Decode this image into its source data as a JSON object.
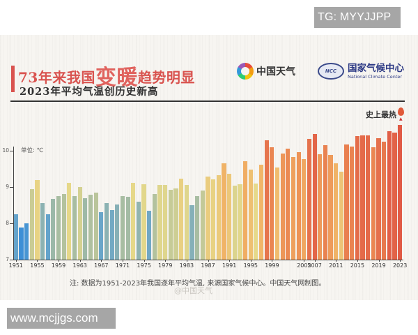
{
  "watermarks": {
    "top": "TG: MYYJJPP",
    "bottom": "www.mcjjgs.com"
  },
  "header": {
    "title_prefix": "73年来我国",
    "title_emph1": "变",
    "title_emph2": "暖",
    "title_suffix": "趋势明显",
    "subtitle": "2023年平均气温创历史新高",
    "logo1_text": "中国天气",
    "logo2_emblem": "NCC",
    "logo2_cn": "国家气候中心",
    "logo2_en": "National Climate Center"
  },
  "annotations": {
    "unit": "单位: ℃",
    "record": "史上最热",
    "note": "注: 数据为1951-2023年我国逐年平均气温, 来源国家气候中心。中国天气网制图。",
    "weibo": "@中国天气"
  },
  "chart_data": {
    "type": "bar",
    "title": "73年来我国变暖趋势明显 — 2023年平均气温创历史新高",
    "xlabel": "",
    "ylabel": "单位: ℃",
    "ylim": [
      7,
      10.9
    ],
    "yticks": [
      7,
      8,
      9,
      10
    ],
    "xtick_labels": [
      "1951",
      "1955",
      "1959",
      "1963",
      "1967",
      "1971",
      "1975",
      "1979",
      "1983",
      "1987",
      "1991",
      "1995",
      "1999",
      "2005",
      "2007",
      "2011",
      "2015",
      "2019",
      "2023"
    ],
    "grid": false,
    "legend": null,
    "categories": [
      1951,
      1952,
      1953,
      1954,
      1955,
      1956,
      1957,
      1958,
      1959,
      1960,
      1961,
      1962,
      1963,
      1964,
      1965,
      1966,
      1967,
      1968,
      1969,
      1970,
      1971,
      1972,
      1973,
      1974,
      1975,
      1976,
      1977,
      1978,
      1979,
      1980,
      1981,
      1982,
      1983,
      1984,
      1985,
      1986,
      1987,
      1988,
      1989,
      1990,
      1991,
      1992,
      1993,
      1994,
      1995,
      1996,
      1997,
      1998,
      1999,
      2000,
      2001,
      2002,
      2003,
      2004,
      2005,
      2006,
      2007,
      2008,
      2009,
      2010,
      2011,
      2012,
      2013,
      2014,
      2015,
      2016,
      2017,
      2018,
      2019,
      2020,
      2021,
      2022,
      2023
    ],
    "values": [
      8.25,
      7.88,
      8.0,
      8.94,
      9.19,
      8.56,
      8.25,
      8.67,
      8.75,
      8.81,
      9.12,
      8.75,
      9.0,
      8.69,
      8.79,
      8.85,
      8.3,
      8.55,
      8.37,
      8.52,
      8.75,
      8.73,
      9.12,
      8.6,
      9.08,
      8.35,
      8.81,
      9.06,
      9.06,
      8.92,
      8.96,
      9.23,
      9.06,
      8.5,
      8.75,
      8.9,
      9.29,
      9.21,
      9.33,
      9.65,
      9.37,
      9.04,
      9.08,
      9.71,
      9.48,
      9.1,
      9.62,
      10.29,
      10.1,
      9.54,
      9.92,
      10.06,
      9.83,
      9.96,
      9.77,
      10.33,
      10.46,
      9.9,
      10.15,
      9.88,
      9.65,
      9.42,
      10.17,
      10.12,
      10.4,
      10.42,
      10.42,
      10.1,
      10.35,
      10.25,
      10.54,
      10.5,
      10.71
    ],
    "annotation": {
      "year": 2023,
      "text": "史上最热"
    },
    "color_scale": [
      "#3d8fd6",
      "#6aa6c9",
      "#9fb9a6",
      "#e6d98a",
      "#f1b86a",
      "#ec8f55",
      "#e05a45"
    ]
  }
}
